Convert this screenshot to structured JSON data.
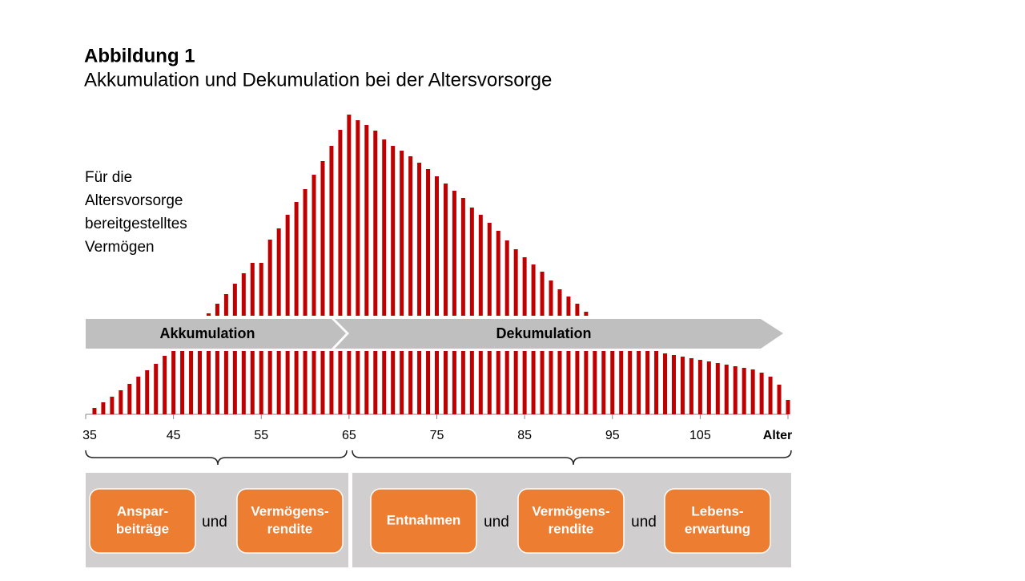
{
  "chart_data": {
    "type": "bar",
    "title": "Abbildung 1",
    "subtitle": "Akkumulation und Dekumulation bei der Altersvorsorge",
    "annotation_lines": [
      "Für die",
      "Altersvorsorge",
      "bereitgestelltes",
      "Vermögen"
    ],
    "xlim": [
      35,
      115
    ],
    "xticks": [
      35,
      45,
      55,
      65,
      75,
      85,
      95,
      105
    ],
    "x_label": "Alter",
    "series": [
      {
        "name": null,
        "color": "#c00000",
        "x": [
          49,
          50,
          51,
          52,
          53,
          54,
          55,
          56,
          57,
          58,
          59,
          60,
          61,
          62,
          63,
          64,
          65,
          66,
          67,
          68,
          69,
          70,
          71,
          72,
          73,
          74,
          75,
          76,
          77,
          78,
          79,
          80,
          81,
          82,
          83,
          84,
          85,
          86,
          87,
          88,
          89,
          90,
          91,
          92
        ],
        "values": [
          3,
          15,
          27,
          40,
          53,
          66,
          66,
          95,
          109,
          126,
          142,
          158,
          176,
          193,
          212,
          232,
          251,
          244,
          238,
          231,
          220,
          212,
          206,
          199,
          191,
          183,
          174,
          165,
          156,
          147,
          135,
          126,
          116,
          106,
          94,
          83,
          73,
          64,
          55,
          44,
          33,
          24,
          15,
          5
        ]
      },
      {
        "name": null,
        "color": "#c00000",
        "x": [
          36,
          37,
          38,
          39,
          40,
          41,
          42,
          43,
          44,
          45,
          46,
          47,
          48,
          49,
          50,
          51,
          52,
          53,
          54,
          55,
          56,
          57,
          58,
          59,
          60,
          61,
          62,
          63,
          64,
          65,
          66,
          67,
          68,
          69,
          70,
          71,
          72,
          73,
          74,
          75,
          76,
          77,
          78,
          79,
          80,
          81,
          82,
          83,
          84,
          85,
          86,
          87,
          88,
          89,
          90,
          91,
          92,
          93,
          94,
          95,
          96,
          97,
          98,
          99,
          100,
          101,
          102,
          103,
          104,
          105,
          106,
          107,
          108,
          109,
          110,
          111,
          112,
          113,
          114,
          115
        ],
        "values": [
          8,
          15,
          22,
          30,
          38,
          47,
          55,
          63,
          73,
          79,
          79,
          79,
          79,
          79,
          79,
          79,
          79,
          79,
          79,
          79,
          79,
          79,
          79,
          79,
          79,
          79,
          79,
          79,
          79,
          79,
          79,
          79,
          79,
          79,
          79,
          79,
          79,
          79,
          79,
          79,
          79,
          79,
          79,
          79,
          79,
          79,
          79,
          79,
          79,
          79,
          79,
          79,
          79,
          79,
          79,
          79,
          79,
          79,
          79,
          79,
          79,
          79,
          79,
          79,
          79,
          76,
          74,
          72,
          70,
          68,
          66,
          64,
          62,
          60,
          58,
          56,
          52,
          47,
          37,
          18
        ]
      }
    ],
    "phases": [
      {
        "label": "Akkumulation",
        "boxes": [
          [
            "Anspar-",
            "beiträge"
          ],
          [
            "Vermögens-",
            "rendite"
          ]
        ],
        "connectors": [
          "und"
        ]
      },
      {
        "label": "Dekumulation",
        "boxes": [
          [
            "Entnahmen"
          ],
          [
            "Vermögens-",
            "rendite"
          ],
          [
            "Lebens-",
            "erwartung"
          ]
        ],
        "connectors": [
          "und",
          "und"
        ]
      }
    ]
  }
}
